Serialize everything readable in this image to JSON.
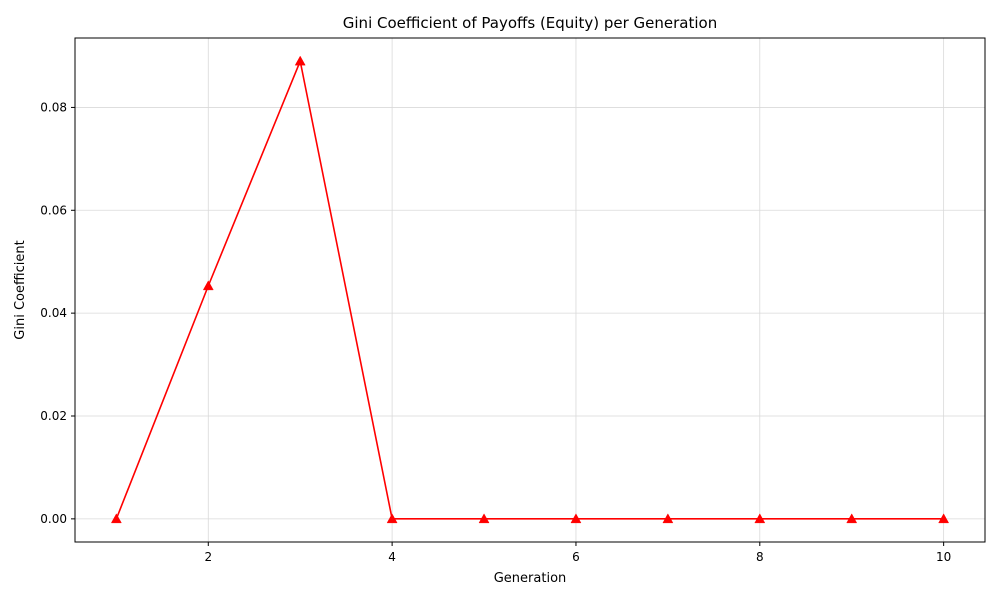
{
  "chart_data": {
    "type": "line",
    "title": "Gini Coefficient of Payoffs (Equity) per Generation",
    "xlabel": "Generation",
    "ylabel": "Gini Coefficient",
    "xlim": [
      0.55,
      10.45
    ],
    "ylim": [
      -0.0045,
      0.0935
    ],
    "xticks": [
      2,
      4,
      6,
      8,
      10
    ],
    "xtick_labels": [
      "2",
      "4",
      "6",
      "8",
      "10"
    ],
    "yticks": [
      0.0,
      0.02,
      0.04,
      0.06,
      0.08
    ],
    "ytick_labels": [
      "0.00",
      "0.02",
      "0.04",
      "0.06",
      "0.08"
    ],
    "grid": true,
    "legend": "none",
    "series": [
      {
        "color": "#ff0000",
        "marker": "triangle-up",
        "x": [
          1,
          2,
          3,
          4,
          5,
          6,
          7,
          8,
          9,
          10
        ],
        "y": [
          0.0,
          0.0453,
          0.089,
          0.0,
          0.0,
          0.0,
          0.0,
          0.0,
          0.0,
          0.0
        ]
      }
    ]
  }
}
